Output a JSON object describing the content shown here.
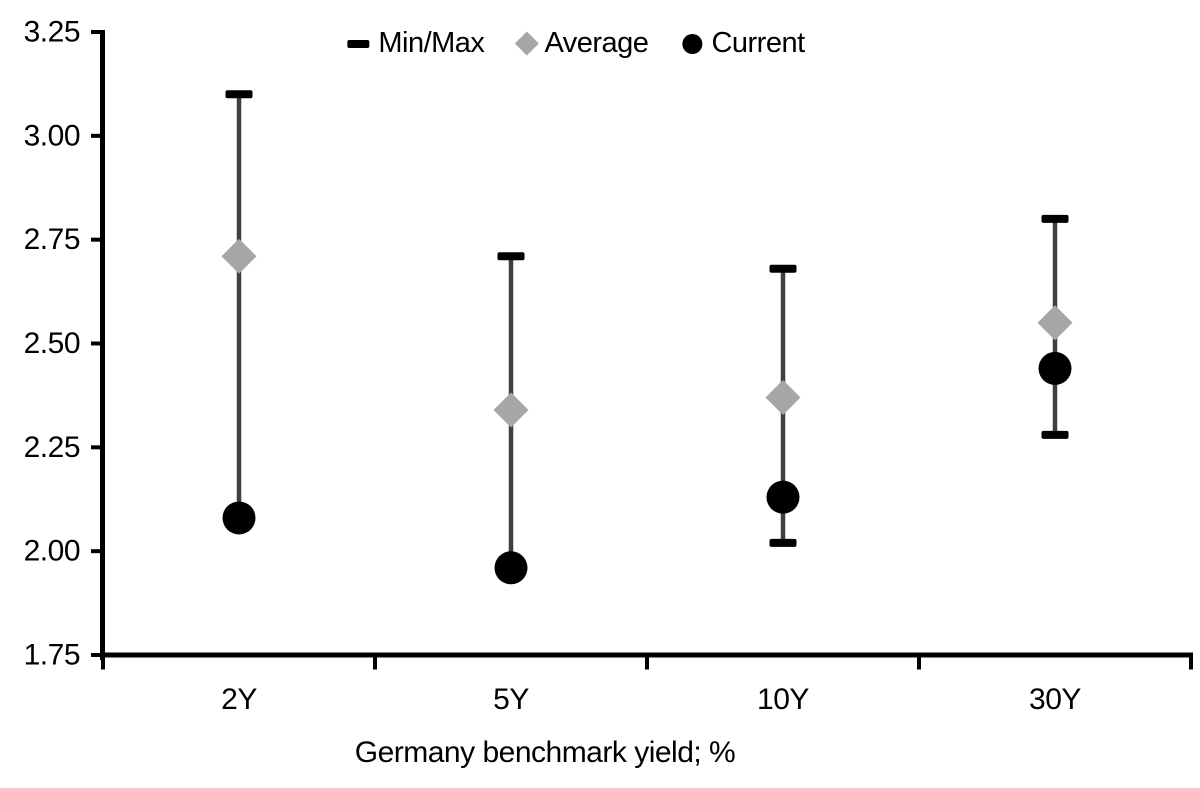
{
  "colors": {
    "background": "#ffffff",
    "axis": "#000000",
    "text": "#000000",
    "range_line": "#3f3f3f",
    "cap": "#000000",
    "average": "#a6a6a6",
    "current": "#000000"
  },
  "legend": [
    {
      "label": "Min/Max",
      "marker": "dash"
    },
    {
      "label": "Average",
      "marker": "diamond"
    },
    {
      "label": "Current",
      "marker": "circle"
    }
  ],
  "chart_data": {
    "type": "error-bar",
    "title": "",
    "xlabel": "Germany benchmark yield; %",
    "ylabel": "",
    "categories": [
      "2Y",
      "5Y",
      "10Y",
      "30Y"
    ],
    "series": [
      {
        "name": "Max",
        "values": [
          3.1,
          2.71,
          2.68,
          2.8
        ]
      },
      {
        "name": "Min",
        "values": [
          2.08,
          1.96,
          2.02,
          2.28
        ]
      },
      {
        "name": "Average",
        "values": [
          2.71,
          2.34,
          2.37,
          2.55
        ]
      },
      {
        "name": "Current",
        "values": [
          2.08,
          1.96,
          2.13,
          2.44
        ]
      }
    ],
    "ylim": [
      1.75,
      3.25
    ],
    "yticks": [
      3.25,
      3.0,
      2.75,
      2.5,
      2.25,
      2.0,
      1.75
    ],
    "ytick_labels": [
      "3.25",
      "3.00",
      "2.75",
      "2.50",
      "2.25",
      "2.00",
      "1.75"
    ],
    "grid": false,
    "legend_position": "top-center"
  }
}
